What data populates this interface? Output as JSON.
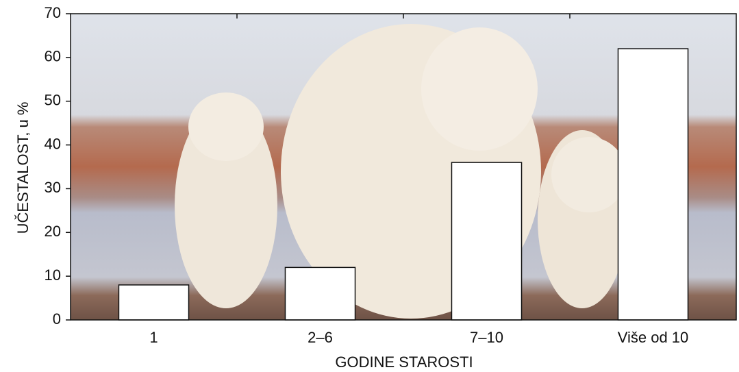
{
  "chart_data": {
    "type": "bar",
    "categories": [
      "1",
      "2–6",
      "7–10",
      "Više od 10"
    ],
    "values": [
      8,
      12,
      36,
      62
    ],
    "color": "#ffffff",
    "ylim": [
      0,
      70
    ],
    "yticks": [
      0,
      10,
      20,
      30,
      40,
      50,
      60,
      70
    ],
    "ylabel": "UČESTALOST, u %",
    "xlabel": "GODINE STAROSTI"
  }
}
